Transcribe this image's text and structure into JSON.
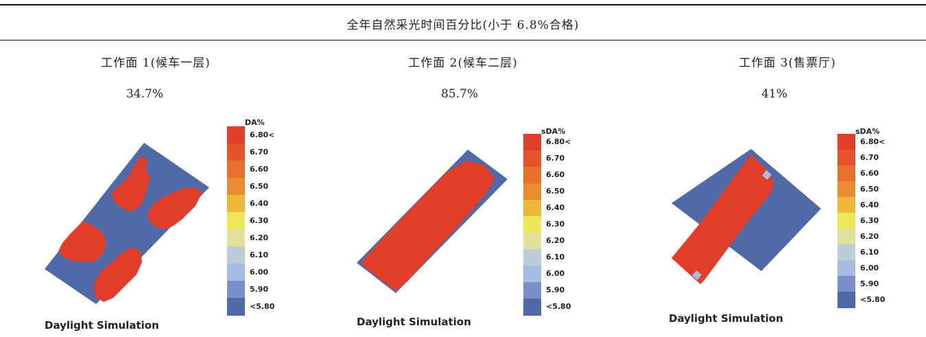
{
  "title": "全年自然采光时间百分比(小于 6.8%合格)",
  "columns": [
    {
      "heading": "工作面 1(候车一层)",
      "value": "34.7%"
    },
    {
      "heading": "工作面 2(候车二层)",
      "value": "85.7%"
    },
    {
      "heading": "工作面 3(售票厅)",
      "value": "41%"
    }
  ],
  "panels": [
    {
      "caption": "Daylight Simulation",
      "legend_title": "DA%"
    },
    {
      "caption": "Daylight Simulation",
      "legend_title": "sDA%"
    },
    {
      "caption": "Daylight Simulation",
      "legend_title": "sDA%"
    }
  ],
  "legend": {
    "labels": [
      "6.80<",
      "6.70",
      "6.60",
      "6.50",
      "6.40",
      "6.30",
      "6.20",
      "6.10",
      "6.00",
      "5.90",
      "<5.80"
    ],
    "colors": [
      "#e13d28",
      "#e4532a",
      "#e6712c",
      "#e98b30",
      "#efb83b",
      "#eee75c",
      "#dfe29a",
      "#bccdd8",
      "#a7bce2",
      "#7a8fc9",
      "#4f6aa6"
    ]
  },
  "colors": {
    "red": "#e13d28",
    "blue": "#4f6aa6",
    "light": "#a7bce2"
  }
}
